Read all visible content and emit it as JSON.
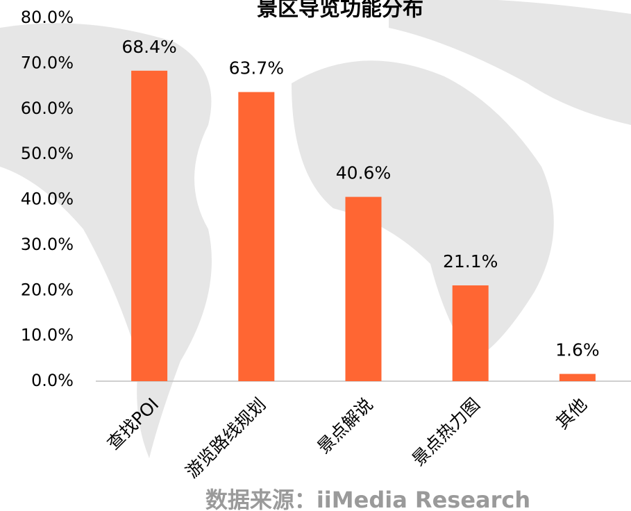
{
  "chart_data": {
    "type": "bar",
    "title": "景区导览功能分布",
    "source": "数据来源：iiMedia Research",
    "categories": [
      "查找POI",
      "游览路线规划",
      "景点解说",
      "景点热力图",
      "其他"
    ],
    "values": [
      68.4,
      63.7,
      40.6,
      21.1,
      1.6
    ],
    "value_labels": [
      "68.4%",
      "63.7%",
      "40.6%",
      "21.1%",
      "1.6%"
    ],
    "color": "#ff6633",
    "ylim": [
      0,
      80
    ],
    "yticks": [
      {
        "value": 0,
        "label": "0.0%"
      },
      {
        "value": 10,
        "label": "10.0%"
      },
      {
        "value": 20,
        "label": "20.0%"
      },
      {
        "value": 30,
        "label": "30.0%"
      },
      {
        "value": 40,
        "label": "40.0%"
      },
      {
        "value": 50,
        "label": "50.0%"
      },
      {
        "value": 60,
        "label": "60.0%"
      },
      {
        "value": 70,
        "label": "70.0%"
      },
      {
        "value": 80,
        "label": "80.0%"
      }
    ],
    "grid": false
  }
}
